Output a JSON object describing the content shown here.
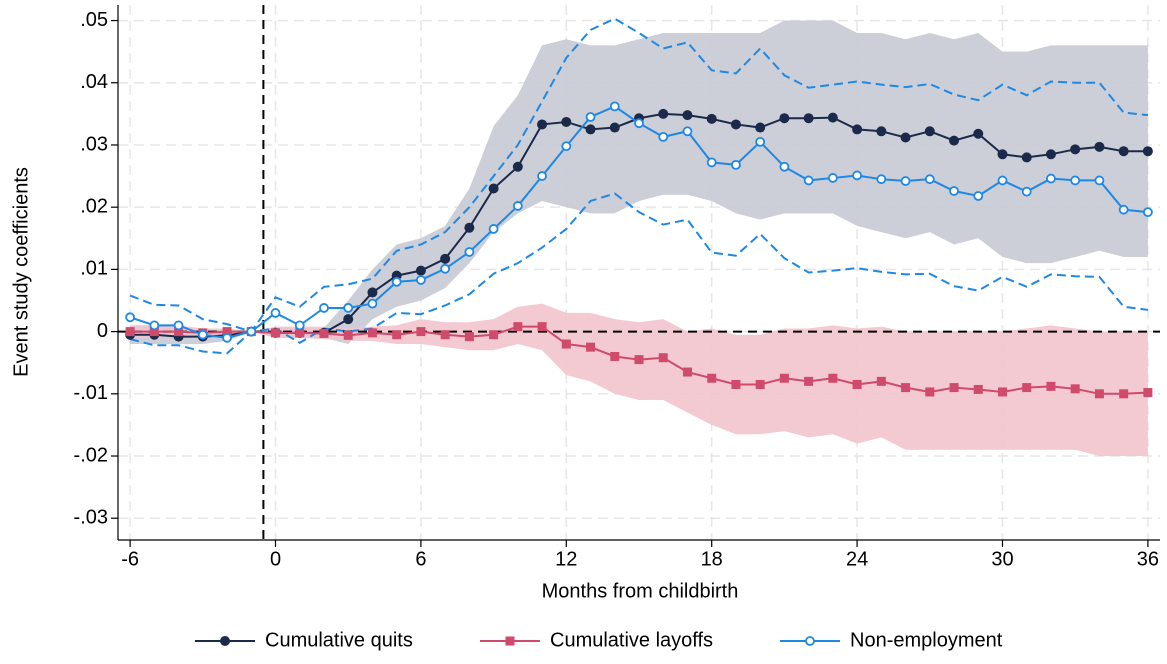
{
  "chart_data": {
    "type": "line",
    "xlabel": "Months from childbirth",
    "ylabel": "Event study coefficients",
    "x": [
      -6,
      -5,
      -4,
      -3,
      -2,
      -1,
      0,
      1,
      2,
      3,
      4,
      5,
      6,
      7,
      8,
      9,
      10,
      11,
      12,
      13,
      14,
      15,
      16,
      17,
      18,
      19,
      20,
      21,
      22,
      23,
      24,
      25,
      26,
      27,
      28,
      29,
      30,
      31,
      32,
      33,
      34,
      35,
      36
    ],
    "xlim": [
      -6.5,
      36.5
    ],
    "xticks": [
      -6,
      0,
      6,
      12,
      18,
      24,
      30,
      36
    ],
    "ylim": [
      -0.0335,
      0.0525
    ],
    "yticks": [
      {
        "value": 0.05,
        "label": ".05"
      },
      {
        "value": 0.04,
        "label": ".04"
      },
      {
        "value": 0.03,
        "label": ".03"
      },
      {
        "value": 0.02,
        "label": ".02"
      },
      {
        "value": 0.01,
        "label": ".01"
      },
      0,
      {
        "value": -0.01,
        "label": "-.01"
      },
      {
        "value": -0.02,
        "label": "-.02"
      },
      {
        "value": -0.03,
        "label": "-.03"
      }
    ],
    "grid": true,
    "refline_y": 0,
    "refline_x": -0.5,
    "legend": "bottom",
    "series": [
      {
        "name": "Cumulative quits",
        "color": "#1b2a4a",
        "fill": "#c6c9d4",
        "marker": "circle",
        "ci": "area",
        "values": [
          -0.0005,
          -0.0005,
          -0.0008,
          -0.0008,
          -0.0006,
          0,
          -0.0002,
          -0.0002,
          -0.0002,
          0.002,
          0.0063,
          0.009,
          0.0098,
          0.0117,
          0.0167,
          0.023,
          0.0265,
          0.0333,
          0.0337,
          0.0325,
          0.0328,
          0.0343,
          0.035,
          0.0348,
          0.0342,
          0.0333,
          0.0328,
          0.0343,
          0.0343,
          0.0344,
          0.0325,
          0.0322,
          0.0312,
          0.0322,
          0.0307,
          0.0318,
          0.0285,
          0.028,
          0.0285,
          0.0293,
          0.0297,
          0.029,
          0.029
        ],
        "lower": [
          -0.002,
          -0.002,
          -0.002,
          -0.002,
          -0.0015,
          0,
          -0.001,
          -0.001,
          -0.001,
          -0.002,
          0.002,
          0.004,
          0.005,
          0.007,
          0.011,
          0.016,
          0.019,
          0.021,
          0.02,
          0.019,
          0.019,
          0.021,
          0.022,
          0.022,
          0.021,
          0.019,
          0.018,
          0.019,
          0.019,
          0.019,
          0.017,
          0.016,
          0.015,
          0.016,
          0.014,
          0.015,
          0.012,
          0.011,
          0.011,
          0.012,
          0.013,
          0.012,
          0.012
        ],
        "upper": [
          0.001,
          0.001,
          0.0005,
          0.0003,
          0.0003,
          0,
          0.0006,
          0.0006,
          0.0006,
          0.005,
          0.01,
          0.014,
          0.015,
          0.017,
          0.023,
          0.033,
          0.038,
          0.046,
          0.047,
          0.046,
          0.046,
          0.047,
          0.048,
          0.048,
          0.048,
          0.048,
          0.048,
          0.05,
          0.05,
          0.05,
          0.048,
          0.048,
          0.047,
          0.048,
          0.047,
          0.048,
          0.045,
          0.045,
          0.046,
          0.046,
          0.046,
          0.046,
          0.046
        ]
      },
      {
        "name": "Cumulative layoffs",
        "color": "#d04a6c",
        "fill": "#f2c3cd",
        "marker": "square",
        "ci": "area",
        "values": [
          0,
          0,
          0,
          -0.0002,
          0,
          0,
          -0.0002,
          -0.0002,
          -0.0003,
          -0.0006,
          -0.0002,
          -0.0005,
          0,
          -0.0005,
          -0.0008,
          -0.0005,
          0.0008,
          0.0008,
          -0.002,
          -0.0025,
          -0.004,
          -0.0045,
          -0.0042,
          -0.0065,
          -0.0075,
          -0.0085,
          -0.0085,
          -0.0075,
          -0.008,
          -0.0075,
          -0.0085,
          -0.008,
          -0.009,
          -0.0097,
          -0.009,
          -0.0093,
          -0.0097,
          -0.009,
          -0.0088,
          -0.0092,
          -0.01,
          -0.01,
          -0.0098
        ],
        "lower": [
          -0.001,
          -0.001,
          -0.001,
          -0.001,
          -0.0008,
          0,
          -0.001,
          -0.001,
          -0.0012,
          -0.0015,
          -0.0015,
          -0.002,
          -0.002,
          -0.0025,
          -0.003,
          -0.003,
          -0.002,
          -0.003,
          -0.007,
          -0.008,
          -0.01,
          -0.011,
          -0.011,
          -0.013,
          -0.015,
          -0.0165,
          -0.0165,
          -0.016,
          -0.017,
          -0.0165,
          -0.018,
          -0.017,
          -0.019,
          -0.019,
          -0.019,
          -0.019,
          -0.019,
          -0.019,
          -0.019,
          -0.019,
          -0.02,
          -0.02,
          -0.02
        ],
        "upper": [
          0.001,
          0.001,
          0.001,
          0.0005,
          0.0005,
          0,
          0.0008,
          0.0008,
          0.0008,
          0.0006,
          0.0008,
          0.001,
          0.002,
          0.0015,
          0.0015,
          0.002,
          0.004,
          0.0045,
          0.003,
          0.003,
          0.002,
          0.0015,
          0.002,
          0,
          0.0005,
          -0.0005,
          -0.0005,
          0.0005,
          0.0005,
          0.001,
          0.0005,
          0.0008,
          0,
          0,
          0,
          0,
          0,
          0.0005,
          0.001,
          0.0005,
          0,
          0,
          0
        ]
      },
      {
        "name": "Non-employment",
        "color": "#1e88e5",
        "marker": "hollow-circle",
        "ci": "dashed",
        "values": [
          0.0023,
          0.001,
          0.001,
          -0.0005,
          -0.001,
          0,
          0.003,
          0.001,
          0.0038,
          0.0038,
          0.0045,
          0.008,
          0.0083,
          0.0101,
          0.0128,
          0.0165,
          0.0202,
          0.025,
          0.0298,
          0.0345,
          0.0362,
          0.0335,
          0.0313,
          0.0322,
          0.0272,
          0.0268,
          0.0305,
          0.0265,
          0.0243,
          0.0247,
          0.0251,
          0.0245,
          0.0242,
          0.0245,
          0.0226,
          0.0218,
          0.0243,
          0.0225,
          0.0246,
          0.0243,
          0.0243,
          0.0196,
          0.0192
        ],
        "lower": [
          -0.0012,
          -0.0022,
          -0.0022,
          -0.0032,
          -0.0035,
          0,
          0.0005,
          -0.0018,
          0.0005,
          0,
          0.0005,
          0.003,
          0.0028,
          0.0042,
          0.006,
          0.0093,
          0.011,
          0.0135,
          0.0165,
          0.021,
          0.0222,
          0.0192,
          0.0172,
          0.018,
          0.0127,
          0.0122,
          0.0157,
          0.0118,
          0.0095,
          0.0098,
          0.0102,
          0.0096,
          0.0092,
          0.0093,
          0.0073,
          0.0066,
          0.0088,
          0.0072,
          0.0092,
          0.0089,
          0.0088,
          0.004,
          0.0035
        ],
        "upper": [
          0.0058,
          0.0043,
          0.0042,
          0.002,
          0.0012,
          0,
          0.0055,
          0.004,
          0.0072,
          0.0076,
          0.0085,
          0.013,
          0.014,
          0.016,
          0.02,
          0.025,
          0.03,
          0.037,
          0.044,
          0.0485,
          0.0503,
          0.048,
          0.0455,
          0.0465,
          0.042,
          0.0415,
          0.0455,
          0.0412,
          0.0392,
          0.0397,
          0.0402,
          0.0397,
          0.0393,
          0.0398,
          0.0381,
          0.0372,
          0.0397,
          0.038,
          0.0402,
          0.04,
          0.04,
          0.0352,
          0.0348
        ]
      }
    ]
  }
}
